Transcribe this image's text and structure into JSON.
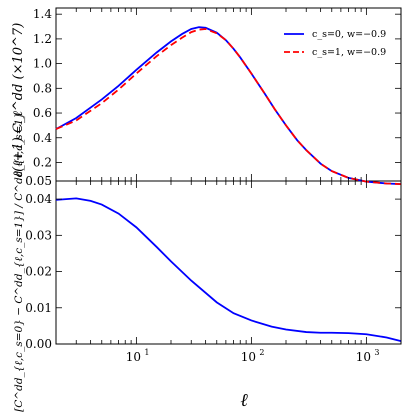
{
  "chart_data": [
    {
      "type": "line",
      "panel": "top",
      "ylabel": "ℓ(ℓ+1) C_ℓ^dd (×10^7)",
      "xscale": "log",
      "xlim": [
        2,
        2000
      ],
      "ylim": [
        0.05,
        1.45
      ],
      "yticks": [
        "0.05",
        "0.2",
        "0.4",
        "0.6",
        "0.8",
        "1.0",
        "1.2",
        "1.4"
      ],
      "ytick_values": [
        0.05,
        0.2,
        0.4,
        0.6,
        0.8,
        1.0,
        1.2,
        1.4
      ],
      "legend_position": "top-right",
      "x": [
        2,
        3,
        5,
        7,
        10,
        15,
        20,
        25,
        30,
        35,
        40,
        50,
        60,
        70,
        80,
        100,
        130,
        160,
        200,
        250,
        300,
        400,
        500,
        700,
        1000,
        1500,
        2000
      ],
      "series": [
        {
          "name": "c_s=0, w=−0.9",
          "color": "#0000ff",
          "style": "solid",
          "values": [
            0.47,
            0.56,
            0.71,
            0.82,
            0.95,
            1.09,
            1.18,
            1.24,
            1.28,
            1.295,
            1.29,
            1.25,
            1.19,
            1.12,
            1.05,
            0.92,
            0.76,
            0.63,
            0.5,
            0.38,
            0.3,
            0.19,
            0.13,
            0.075,
            0.045,
            0.03,
            0.025
          ]
        },
        {
          "name": "c_s=1, w=−0.9",
          "color": "#ff0000",
          "style": "dashed",
          "values": [
            0.47,
            0.54,
            0.68,
            0.79,
            0.92,
            1.06,
            1.15,
            1.21,
            1.255,
            1.275,
            1.28,
            1.245,
            1.19,
            1.12,
            1.05,
            0.92,
            0.76,
            0.63,
            0.5,
            0.38,
            0.3,
            0.19,
            0.13,
            0.075,
            0.045,
            0.03,
            0.025
          ]
        }
      ]
    },
    {
      "type": "line",
      "panel": "bottom",
      "xlabel": "ℓ",
      "ylabel": "[C^dd_{ℓ,c_s=0} − C^dd_{ℓ,c_s=1}] / C^dd_{ℓ,c_s=1}",
      "xscale": "log",
      "xlim": [
        2,
        2000
      ],
      "ylim": [
        0,
        0.045
      ],
      "yticks": [
        "0.00",
        "0.01",
        "0.02",
        "0.03",
        "0.04"
      ],
      "ytick_values": [
        0,
        0.01,
        0.02,
        0.03,
        0.04
      ],
      "xticks": [
        10,
        100,
        1000
      ],
      "xtick_bases": [
        "10",
        "10",
        "10"
      ],
      "xtick_exps": [
        "1",
        "2",
        "3"
      ],
      "x": [
        2,
        3,
        4,
        5,
        7,
        10,
        15,
        20,
        30,
        50,
        70,
        100,
        150,
        200,
        300,
        400,
        500,
        700,
        1000,
        1500,
        2000
      ],
      "series": [
        {
          "color": "#0000ff",
          "style": "solid",
          "values": [
            0.0398,
            0.0402,
            0.0395,
            0.0385,
            0.036,
            0.0322,
            0.0268,
            0.0228,
            0.0175,
            0.0115,
            0.0085,
            0.0065,
            0.0048,
            0.004,
            0.0033,
            0.0031,
            0.0031,
            0.003,
            0.0027,
            0.0018,
            0.0008
          ]
        }
      ]
    }
  ]
}
